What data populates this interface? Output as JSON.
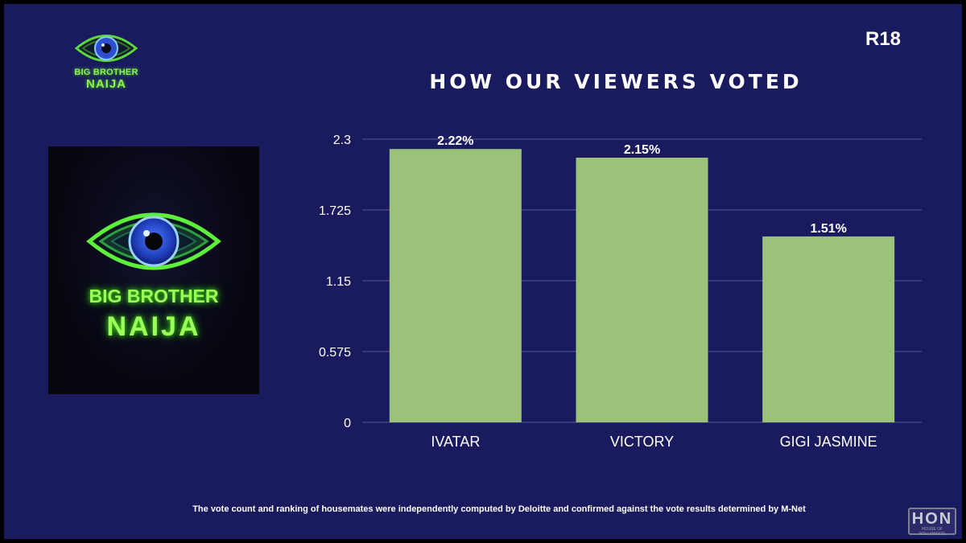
{
  "brand": {
    "logo_line1": "BIG BROTHER",
    "logo_line2": "NAIJA",
    "rating": "R18",
    "eye_icon": "eye-icon",
    "accent_color": "#9cff5a",
    "background_color": "#1a1a5e"
  },
  "footnote": "The vote count and ranking of housemates were independently computed by Deloitte and confirmed against the vote results determined by M-Net",
  "watermark": {
    "text": "HON",
    "subtext": "HOUSE OF NOLLYWOOD"
  },
  "chart_data": {
    "type": "bar",
    "title": "HOW OUR VIEWERS VOTED",
    "xlabel": "",
    "ylabel": "",
    "categories": [
      "IVATAR",
      "VICTORY",
      "GIGI JASMINE"
    ],
    "values": [
      2.22,
      2.15,
      1.51
    ],
    "data_labels": [
      "2.22%",
      "2.15%",
      "1.51%"
    ],
    "yticks": [
      "0",
      "0.575",
      "1.15",
      "1.725",
      "2.3"
    ],
    "ytick_values": [
      0,
      0.575,
      1.15,
      1.725,
      2.3
    ],
    "ylim": [
      0,
      2.3
    ],
    "grid": true,
    "legend": "none",
    "bar_color": "#9bc27a",
    "grid_color": "#5a5a90",
    "text_color": "#ffffff"
  }
}
